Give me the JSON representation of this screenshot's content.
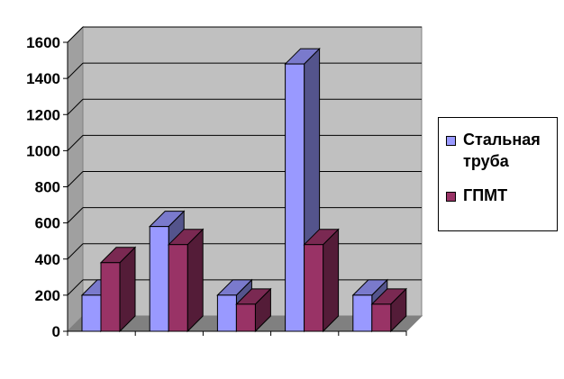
{
  "chart_data": {
    "type": "bar",
    "title": "",
    "xlabel": "",
    "ylabel": "",
    "categories": [
      "",
      "",
      "",
      "",
      ""
    ],
    "ylim": [
      0,
      1600
    ],
    "yticks": [
      "0",
      "200",
      "400",
      "600",
      "800",
      "1000",
      "1200",
      "1400",
      "1600"
    ],
    "grid": true,
    "legend_position": "right",
    "series": [
      {
        "name": "Стальная труба",
        "color": "#9999ff",
        "values": [
          200,
          580,
          200,
          1480,
          200
        ]
      },
      {
        "name": "ГПМТ",
        "color": "#993366",
        "values": [
          380,
          480,
          150,
          480,
          150
        ]
      }
    ]
  }
}
